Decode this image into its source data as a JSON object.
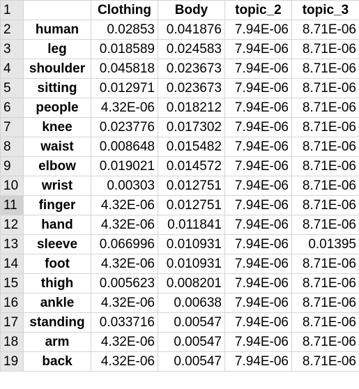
{
  "header_row_number": "1",
  "columns": [
    "",
    "Clothing",
    "Body",
    "topic_2",
    "topic_3"
  ],
  "rows": [
    {
      "num": "2",
      "word": "human",
      "clothing": "0.02853",
      "body": "0.041876",
      "topic_2": "7.94E-06",
      "topic_3": "8.71E-06"
    },
    {
      "num": "3",
      "word": "leg",
      "clothing": "0.018589",
      "body": "0.024583",
      "topic_2": "7.94E-06",
      "topic_3": "8.71E-06"
    },
    {
      "num": "4",
      "word": "shoulder",
      "clothing": "0.045818",
      "body": "0.023673",
      "topic_2": "7.94E-06",
      "topic_3": "8.71E-06"
    },
    {
      "num": "5",
      "word": "sitting",
      "clothing": "0.012971",
      "body": "0.023673",
      "topic_2": "7.94E-06",
      "topic_3": "8.71E-06"
    },
    {
      "num": "6",
      "word": "people",
      "clothing": "4.32E-06",
      "body": "0.018212",
      "topic_2": "7.94E-06",
      "topic_3": "8.71E-06"
    },
    {
      "num": "7",
      "word": "knee",
      "clothing": "0.023776",
      "body": "0.017302",
      "topic_2": "7.94E-06",
      "topic_3": "8.71E-06"
    },
    {
      "num": "8",
      "word": "waist",
      "clothing": "0.008648",
      "body": "0.015482",
      "topic_2": "7.94E-06",
      "topic_3": "8.71E-06"
    },
    {
      "num": "9",
      "word": "elbow",
      "clothing": "0.019021",
      "body": "0.014572",
      "topic_2": "7.94E-06",
      "topic_3": "8.71E-06"
    },
    {
      "num": "10",
      "word": "wrist",
      "clothing": "0.00303",
      "body": "0.012751",
      "topic_2": "7.94E-06",
      "topic_3": "8.71E-06"
    },
    {
      "num": "11",
      "word": "finger",
      "clothing": "4.32E-06",
      "body": "0.012751",
      "topic_2": "7.94E-06",
      "topic_3": "8.71E-06"
    },
    {
      "num": "12",
      "word": "hand",
      "clothing": "4.32E-06",
      "body": "0.011841",
      "topic_2": "7.94E-06",
      "topic_3": "8.71E-06"
    },
    {
      "num": "13",
      "word": "sleeve",
      "clothing": "0.066996",
      "body": "0.010931",
      "topic_2": "7.94E-06",
      "topic_3": "0.01395"
    },
    {
      "num": "14",
      "word": "foot",
      "clothing": "4.32E-06",
      "body": "0.010931",
      "topic_2": "7.94E-06",
      "topic_3": "8.71E-06"
    },
    {
      "num": "15",
      "word": "thigh",
      "clothing": "0.005623",
      "body": "0.008201",
      "topic_2": "7.94E-06",
      "topic_3": "8.71E-06"
    },
    {
      "num": "16",
      "word": "ankle",
      "clothing": "4.32E-06",
      "body": "0.00638",
      "topic_2": "7.94E-06",
      "topic_3": "8.71E-06"
    },
    {
      "num": "17",
      "word": "standing",
      "clothing": "0.033716",
      "body": "0.00547",
      "topic_2": "7.94E-06",
      "topic_3": "8.71E-06"
    },
    {
      "num": "18",
      "word": "arm",
      "clothing": "4.32E-06",
      "body": "0.00547",
      "topic_2": "7.94E-06",
      "topic_3": "8.71E-06"
    },
    {
      "num": "19",
      "word": "back",
      "clothing": "4.32E-06",
      "body": "0.00547",
      "topic_2": "7.94E-06",
      "topic_3": "8.71E-06"
    }
  ],
  "selected_row": "11"
}
